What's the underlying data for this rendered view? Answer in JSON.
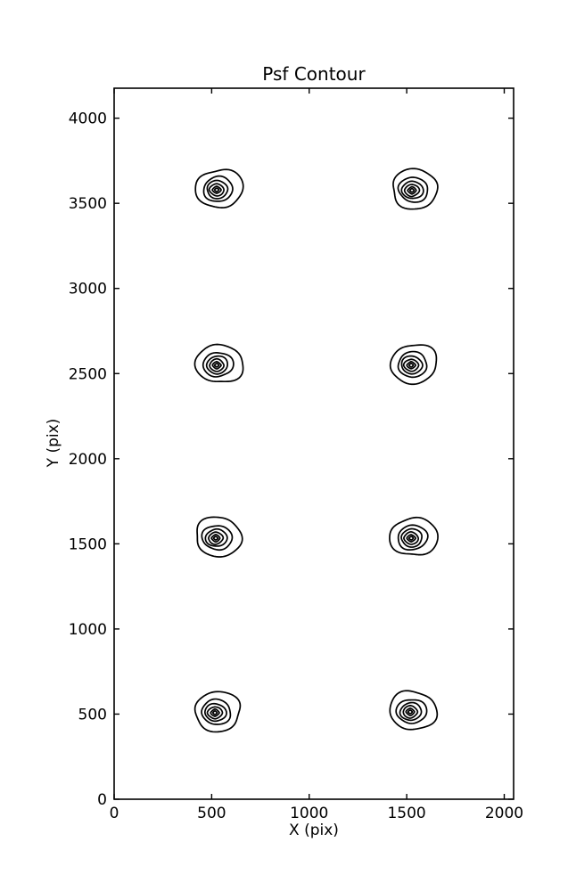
{
  "figure": {
    "background": "#ffffff",
    "line_color": "#000000"
  },
  "chart_data": {
    "type": "contour",
    "title": "Psf Contour",
    "xlabel": "X (pix)",
    "ylabel": "Y (pix)",
    "xlim": [
      0,
      2048
    ],
    "ylim": [
      0,
      4176
    ],
    "xticks": [
      0,
      500,
      1000,
      1500,
      2000
    ],
    "yticks": [
      0,
      500,
      1000,
      1500,
      2000,
      2500,
      3000,
      3500,
      4000
    ],
    "grid": false,
    "legend": false,
    "series_description": "8 point-spread-function contour blobs arranged in a 2-column by 4-row grid",
    "psf_centers": [
      {
        "x": 526,
        "y": 3579
      },
      {
        "x": 1527,
        "y": 3576
      },
      {
        "x": 526,
        "y": 2549
      },
      {
        "x": 1523,
        "y": 2549
      },
      {
        "x": 521,
        "y": 1533
      },
      {
        "x": 1523,
        "y": 1533
      },
      {
        "x": 517,
        "y": 508
      },
      {
        "x": 1518,
        "y": 513
      }
    ],
    "outer_radius": {
      "rx": 118,
      "ry": 113
    },
    "contour_levels_rel": [
      1.0,
      0.64,
      0.46,
      0.32,
      0.19,
      0.095
    ]
  }
}
